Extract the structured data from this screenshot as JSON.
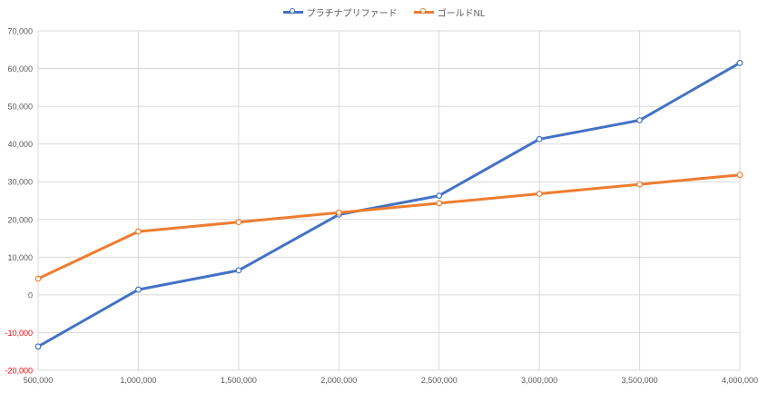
{
  "chart_data": {
    "type": "line",
    "title": "",
    "xlabel": "",
    "ylabel": "",
    "x": [
      500000,
      1000000,
      1500000,
      2000000,
      2500000,
      3000000,
      3500000,
      4000000
    ],
    "x_tick_labels": [
      "500,000",
      "1,000,000",
      "1,500,000",
      "2,000,000",
      "2,500,000",
      "3,000,000",
      "3,500,000",
      "4,000,000"
    ],
    "ylim": [
      -20000,
      70000
    ],
    "y_ticks": [
      -20000,
      -10000,
      0,
      10000,
      20000,
      30000,
      40000,
      50000,
      60000,
      70000
    ],
    "y_tick_labels": [
      "-20,000",
      "-10,000",
      "0",
      "10,000",
      "20,000",
      "30,000",
      "40,000",
      "50,000",
      "60,000",
      "70,000"
    ],
    "negative_label_color": "#ff0000",
    "grid": true,
    "legend_position": "top-center",
    "series": [
      {
        "name": "プラチナプリファード",
        "color": "#4472c4",
        "values": [
          -13700,
          1400,
          6500,
          21300,
          26300,
          41300,
          46300,
          61500
        ]
      },
      {
        "name": "ゴールドNL",
        "color": "#ed7d31",
        "values": [
          4300,
          16800,
          19300,
          21800,
          24300,
          26800,
          29300,
          31800
        ]
      }
    ]
  }
}
